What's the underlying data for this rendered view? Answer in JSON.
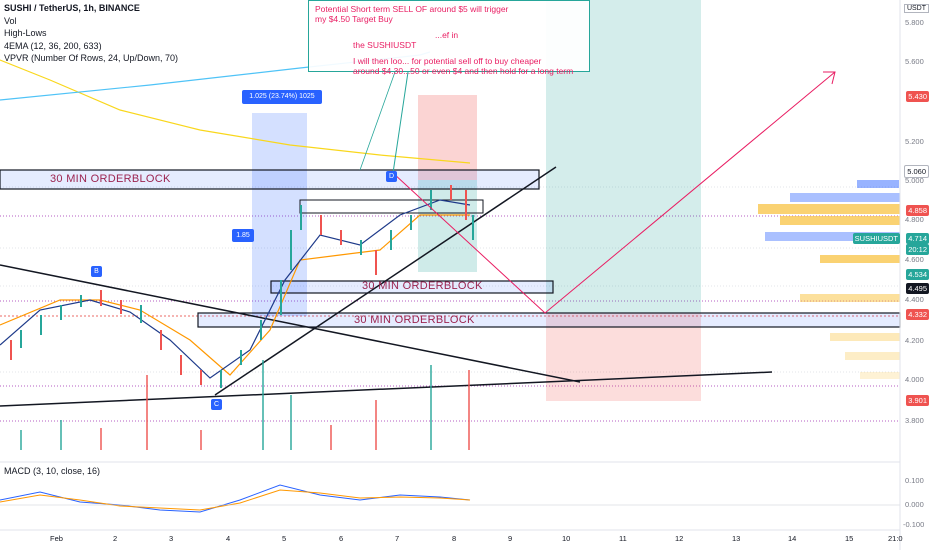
{
  "legend": {
    "title": "SUSHI / TetherUS, 1h, BINANCE",
    "line2": "Vol",
    "line3": "High-Lows",
    "line4": "4EMA (12, 36, 200, 633)",
    "line5": "VPVR (Number Of Rows, 24, Up/Down, 70)"
  },
  "annotation": {
    "line1": "Potential Short term SELL OF around $5 will trigger",
    "line2": "my $4.50 Target Buy",
    "line3": "...ef in",
    "line4": "the SUSHIUSDT",
    "line5": "I will then loo... for potential sell off to buy cheaper",
    "line6": "around $4.30...50 or even $4  and then hold for a long term"
  },
  "measure": {
    "top": "1.025 (23.74%) 1025",
    "side": "1.85"
  },
  "orderblocks": [
    "30 MIN ORDERBLOCK",
    "30 MIN ORDERBLOCK",
    "30 MIN ORDERBLOCK"
  ],
  "markers": {
    "b": "B",
    "c": "C",
    "d": "D"
  },
  "price_axis": {
    "currency": "USDT",
    "ticks": [
      "5.800",
      "5.600",
      "5.200",
      "5.000",
      "4.800",
      "4.600",
      "4.400",
      "4.200",
      "4.000",
      "3.800"
    ],
    "tags": {
      "t5430": "5.430",
      "t5060": "5.060",
      "t4858": "4.858",
      "sym": "SUSHIUSDT",
      "t4714": "4.714",
      "time": "20:12",
      "t4534": "4.534",
      "t4495": "4.495",
      "t4332": "4.332",
      "t3901": "3.901"
    }
  },
  "macd": {
    "label": "MACD (3, 10, close, 16)",
    "ticks": [
      "0.100",
      "0.000",
      "-0.100"
    ]
  },
  "time_axis": [
    "Feb",
    "2",
    "3",
    "4",
    "5",
    "6",
    "7",
    "8",
    "9",
    "10",
    "11",
    "12",
    "13",
    "14",
    "15",
    "21:0"
  ],
  "colors": {
    "up": "#26a69a",
    "down": "#ef5350",
    "accent": "#2962ff",
    "ob_text": "#9c2450"
  }
}
